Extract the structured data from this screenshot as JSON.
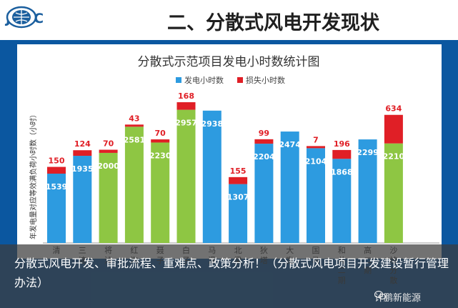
{
  "header": {
    "logo_text": "JPIIC",
    "title": "二、分散式风电开发现状"
  },
  "overlay": {
    "caption": "分散式风电开发、审批流程、重难点、政策分析！（分散式风电项目开发建设暂行管理办法）"
  },
  "watermark": "计鹏新能源",
  "colors": {
    "blue_bar": "#2d9be0",
    "green_bar": "#8ec643",
    "loss": "#e01f26",
    "background": "#0b57a0"
  },
  "icons": [
    "globe-logo-icon",
    "wechat-icon"
  ],
  "chart_data": {
    "type": "bar",
    "stacked": true,
    "title": "分散式示范项目发电小时数统计图",
    "ylabel": "年发电量对应等效满负荷小时数（小时）",
    "xlabel": "",
    "ylim": [
      0,
      3300
    ],
    "legend_position": "top-right",
    "categories": [
      "清",
      "三塘",
      "将淖",
      "红沟",
      "聂子",
      "白子",
      "马泽",
      "北梁",
      "狄塔",
      "大宽",
      "国马",
      "和井二期",
      "高二期",
      "沙坡分散"
    ],
    "series": [
      {
        "name": "发电小时数",
        "values": [
          1539,
          1935,
          2000,
          2581,
          2230,
          2957,
          2938,
          1307,
          2204,
          2474,
          2104,
          1868,
          2299,
          2210
        ],
        "colors": [
          "blue",
          "blue",
          "green",
          "green",
          "green",
          "green",
          "blue",
          "blue",
          "blue",
          "blue",
          "blue",
          "blue",
          "blue",
          "green"
        ]
      },
      {
        "name": "损失小时数",
        "values": [
          150,
          124,
          70,
          43,
          70,
          168,
          0,
          155,
          99,
          0,
          7,
          196,
          0,
          634
        ]
      }
    ],
    "generation_labels": [
      "1539",
      "1935",
      "2000",
      "2581",
      "2230",
      "2957",
      "2938",
      "1307",
      "2204",
      "2474",
      "2104",
      "1868",
      "2299",
      "2210"
    ],
    "loss_labels": [
      "150",
      "124",
      "70",
      "43",
      "70",
      "168",
      "",
      "155",
      "99",
      "",
      "7",
      "196",
      "",
      "634"
    ]
  }
}
